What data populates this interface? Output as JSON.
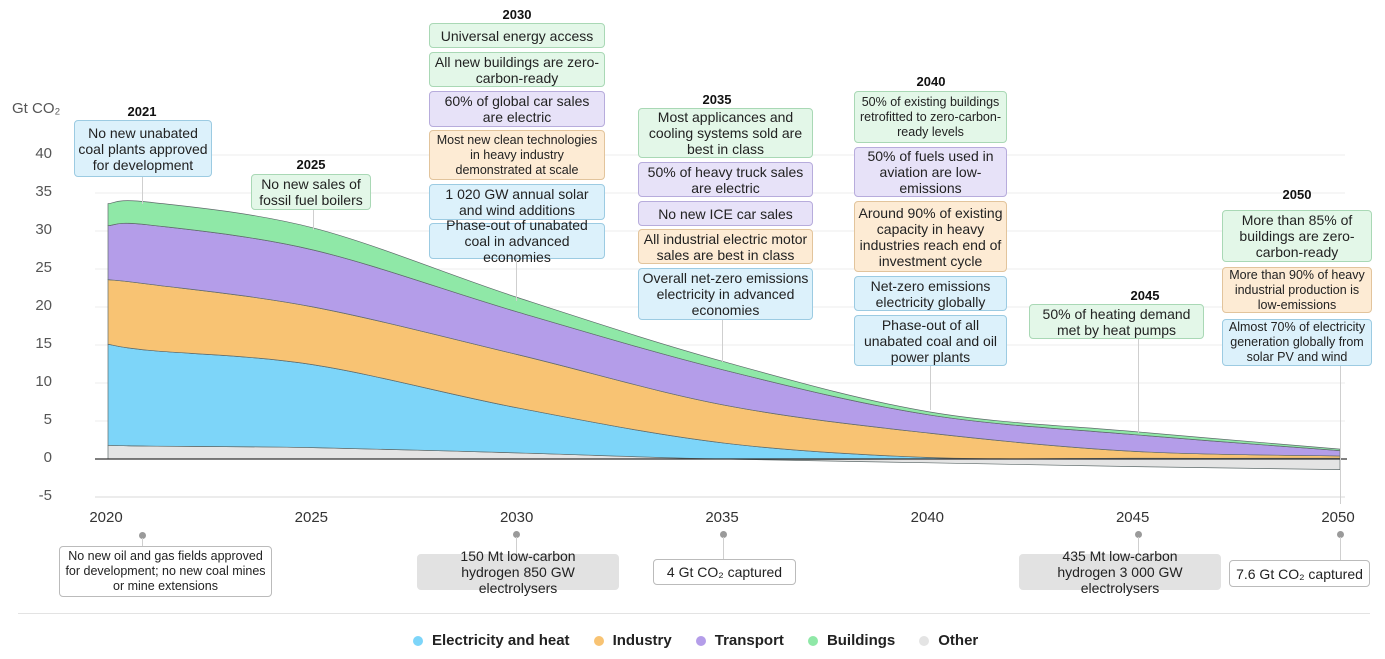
{
  "chart_data": {
    "type": "area",
    "stacked": true,
    "ylabel": "Gt CO₂",
    "ylim": [
      -5,
      40
    ],
    "yticks": [
      "40",
      "35",
      "30",
      "25",
      "20",
      "15",
      "10",
      "5",
      "0",
      "-5"
    ],
    "xlim": [
      2020,
      2050
    ],
    "xticks": [
      "2020",
      "2025",
      "2030",
      "2035",
      "2040",
      "2045",
      "2050"
    ],
    "grid": true,
    "legend_position": "bottom",
    "x": [
      2020,
      2021,
      2025,
      2030,
      2035,
      2040,
      2045,
      2050
    ],
    "series": [
      {
        "name": "Other",
        "color": "#e4e4e4",
        "values": [
          1.8,
          1.7,
          1.5,
          0.8,
          0.0,
          -0.5,
          -1.0,
          -1.4
        ]
      },
      {
        "name": "Electricity and heat",
        "color": "#7dd5f9",
        "values": [
          13.3,
          12.6,
          10.9,
          5.9,
          2.1,
          0.2,
          0.1,
          0.1
        ]
      },
      {
        "name": "Industry",
        "color": "#f8c373",
        "values": [
          8.5,
          8.7,
          7.6,
          7.0,
          5.0,
          3.2,
          0.9,
          0.3
        ]
      },
      {
        "name": "Transport",
        "color": "#b49de9",
        "values": [
          7.1,
          7.8,
          7.5,
          5.6,
          4.6,
          2.4,
          2.2,
          0.7
        ]
      },
      {
        "name": "Buildings",
        "color": "#8fe8a7",
        "values": [
          2.9,
          3.0,
          2.9,
          1.9,
          1.1,
          0.4,
          0.4,
          0.2
        ]
      }
    ]
  },
  "legend": [
    {
      "label": "Electricity and heat",
      "color": "#7dd5f9"
    },
    {
      "label": "Industry",
      "color": "#f8c373"
    },
    {
      "label": "Transport",
      "color": "#b49de9"
    },
    {
      "label": "Buildings",
      "color": "#8fe8a7"
    },
    {
      "label": "Other",
      "color": "#e4e4e4"
    }
  ],
  "milestones_top": {
    "y2021": {
      "year": "2021",
      "items": [
        "No new unabated coal plants approved for development"
      ]
    },
    "y2025": {
      "year": "2025",
      "items": [
        "No new sales of fossil fuel boilers"
      ]
    },
    "y2030": {
      "year": "2030",
      "items": [
        "Universal energy access",
        "All new buildings are zero-carbon-ready",
        "60% of global car sales are electric",
        "Most new clean technologies in heavy industry demonstrated at scale",
        "1 020 GW annual solar and wind additions",
        "Phase-out of unabated coal in advanced economies"
      ]
    },
    "y2035": {
      "year": "2035",
      "items": [
        "Most applicances and cooling systems sold are best in class",
        "50% of heavy truck sales are electric",
        "No new ICE car sales",
        "All industrial electric motor sales are best in class",
        "Overall net-zero emissions electricity in advanced economies"
      ]
    },
    "y2040": {
      "year": "2040",
      "items": [
        "50% of existing buildings retrofitted to zero-carbon-ready levels",
        "50% of fuels used in aviation are low-emissions",
        "Around 90% of existing capacity in heavy industries reach end of investment cycle",
        "Net-zero emissions electricity globally",
        "Phase-out of all unabated coal and oil power plants"
      ]
    },
    "y2045": {
      "year": "2045",
      "items": [
        "50% of heating demand met by heat pumps"
      ]
    },
    "y2050": {
      "year": "2050",
      "items": [
        "More than 85% of buildings are zero-carbon-ready",
        "More than 90% of heavy industrial production is low-emissions",
        "Almost 70% of electricity generation globally from solar PV and wind"
      ]
    }
  },
  "milestones_bottom": {
    "y2021": "No new oil and gas fields approved for development; no new coal mines or mine extensions",
    "y2030": "150 Mt low-carbon hydrogen 850 GW electrolysers",
    "y2035": "4 Gt CO₂ captured",
    "y2045": "435 Mt low-carbon hydrogen 3 000 GW electrolysers",
    "y2050": "7.6 Gt CO₂ captured"
  }
}
